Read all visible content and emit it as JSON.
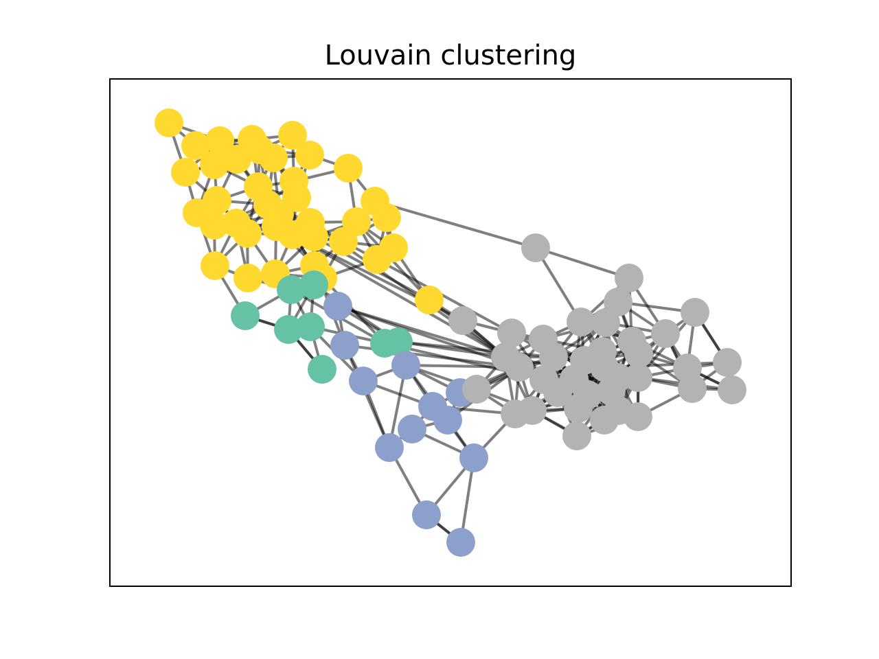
{
  "title": "Louvain clustering",
  "colors": {
    "edge": "#000000",
    "frame": "#000000",
    "clusters": {
      "yellow": "#ffd92f",
      "teal": "#66c2a5",
      "blue": "#8da0cb",
      "gray": "#b3b3b3"
    }
  }
}
